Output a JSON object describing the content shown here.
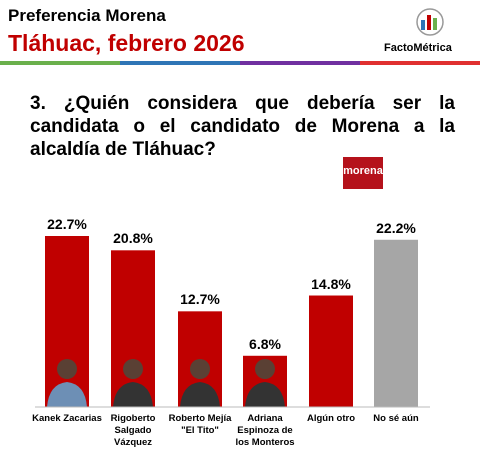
{
  "header": {
    "title": "Preferencia Morena",
    "subtitle": "Tláhuac, febrero 2026",
    "brand": "FactoMétrica"
  },
  "chart_data": {
    "type": "bar",
    "title": "3. ¿Quién considera que debería ser la candidata o el candidato de Morena a la alcaldía de Tláhuac?",
    "logo": "morena",
    "categories": [
      "Kanek Zacarias",
      "Rigoberto Salgado Vázquez",
      "Roberto Mejía \"El Tito\"",
      "Adriana Espinoza de los Monteros",
      "Algún otro",
      "No sé aún"
    ],
    "values": [
      22.7,
      20.8,
      12.7,
      6.8,
      14.8,
      22.2
    ],
    "value_labels": [
      "22.7%",
      "20.8%",
      "12.7%",
      "6.8%",
      "14.8%",
      "22.2%"
    ],
    "colors": [
      "#c00000",
      "#c00000",
      "#c00000",
      "#c00000",
      "#c00000",
      "#a6a6a6"
    ]
  }
}
